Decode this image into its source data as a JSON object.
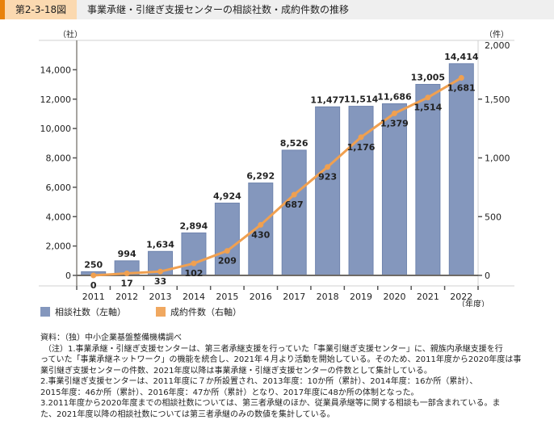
{
  "header": {
    "figure_number": "第2-3-18図",
    "title": "事業承継・引継ぎ支援センターの相談社数・成約件数の推移"
  },
  "colors": {
    "header_accent": "#e8820c",
    "header_number_bg": "#fbd9b0",
    "header_title_bg": "#efefef",
    "bar": "#8497bd",
    "bar_border": "#6f84ae",
    "line": "#f0a050"
  },
  "chart_data": {
    "type": "bar+line",
    "title": "事業承継・引継ぎ支援センターの相談社数・成約件数の推移",
    "categories": [
      "2011",
      "2012",
      "2013",
      "2014",
      "2015",
      "2016",
      "2017",
      "2018",
      "2019",
      "2020",
      "2021",
      "2022"
    ],
    "xlabel": "（年度）",
    "series": [
      {
        "name": "相談社数（左軸）",
        "type": "bar",
        "axis": "left",
        "values": [
          250,
          994,
          1634,
          2894,
          4924,
          6292,
          8526,
          11477,
          11514,
          11686,
          13005,
          14414
        ],
        "labels": [
          "250",
          "994",
          "1,634",
          "2,894",
          "4,924",
          "6,292",
          "8,526",
          "11,477",
          "11,514",
          "11,686",
          "13,005",
          "14,414"
        ]
      },
      {
        "name": "成約件数（右軸）",
        "type": "line",
        "axis": "right",
        "values": [
          0,
          17,
          33,
          102,
          209,
          430,
          687,
          923,
          1176,
          1379,
          1514,
          1681
        ],
        "labels": [
          "0",
          "17",
          "33",
          "102",
          "209",
          "430",
          "687",
          "923",
          "1,176",
          "1,379",
          "1,514",
          "1,681"
        ]
      }
    ],
    "left_axis": {
      "unit": "（社）",
      "ylim": [
        0,
        16000
      ],
      "ticks": [
        0,
        2000,
        4000,
        6000,
        8000,
        10000,
        12000,
        14000
      ],
      "tick_labels": [
        "0",
        "2,000",
        "4,000",
        "6,000",
        "8,000",
        "10,000",
        "12,000",
        "14,000"
      ]
    },
    "right_axis": {
      "unit": "（件）",
      "ylim": [
        0,
        2000
      ],
      "ticks": [
        0,
        500,
        1000,
        1500,
        2000
      ],
      "tick_labels": [
        "0",
        "500",
        "1,000",
        "1,500",
        "2,000"
      ]
    },
    "grid": false,
    "legend_position": "bottom-left"
  },
  "legend": {
    "items": [
      {
        "label": "相談社数（左軸）"
      },
      {
        "label": "成約件数（右軸）"
      }
    ]
  },
  "notes": {
    "lines": [
      "資料：（独）中小企業基盤整備機構調べ",
      "（注）1.事業承継・引継ぎ支援センターは、第三者承継支援を行っていた「事業引継ぎ支援センター」に、親族内承継支援を行",
      "っていた「事業承継ネットワーク」の機能を統合し、2021年４月より活動を開始している。そのため、2011年度から2020年度は事",
      "業引継ぎ支援センターの件数、2021年度以降は事業承継・引継ぎ支援センターの件数として集計している。",
      "2.事業引継ぎ支援センターは、2011年度に７か所設置され、2013年度：10か所（累計）、2014年度：16か所（累計）、",
      "2015年度：46か所（累計）、2016年度：47か所（累計）となり、2017年度に48か所の体制となった。",
      "3.2011年度から2020年度までの相談社数については、第三者承継のほか、従業員承継等に関する相談も一部含まれている。ま",
      "た、2021年度以降の相談社数については第三者承継のみの数値を集計している。"
    ]
  }
}
